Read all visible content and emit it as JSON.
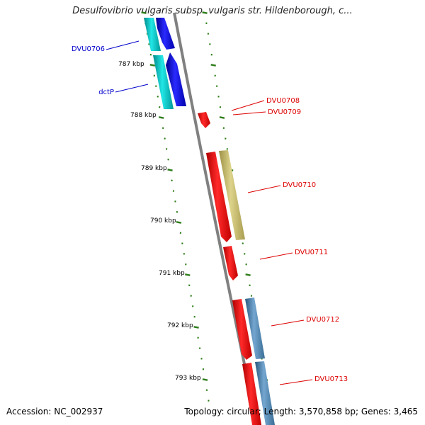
{
  "header": {
    "title": "Desulfovibrio vulgaris subsp. vulgaris str. Hildenborough, c..."
  },
  "footer": {
    "accession": "Accession: NC_002937",
    "stats": "Topology: circular; Length: 3,570,858 bp; Genes: 3,465"
  },
  "colors": {
    "backbone": "#808080",
    "tick": "#2e7d1a",
    "cds_cyan": "#00cccc",
    "cds_blue": "#0000ee",
    "cds_red": "#ee0000",
    "cds_khaki": "#c8bd6a",
    "cds_steel": "#4682b4",
    "label_blue": "#0000cc",
    "label_red": "#dd0000"
  },
  "scale_labels": [
    {
      "text": "787 kbp"
    },
    {
      "text": "788 kbp"
    },
    {
      "text": "789 kbp"
    },
    {
      "text": "790 kbp"
    },
    {
      "text": "791 kbp"
    },
    {
      "text": "792 kbp"
    },
    {
      "text": "793 kbp"
    }
  ],
  "gene_labels": [
    {
      "text": "DVU0706",
      "strand": "forward"
    },
    {
      "text": "dctP",
      "strand": "forward"
    },
    {
      "text": "DVU0708",
      "strand": "reverse"
    },
    {
      "text": "DVU0709",
      "strand": "reverse"
    },
    {
      "text": "DVU0710",
      "strand": "reverse"
    },
    {
      "text": "DVU0711",
      "strand": "reverse"
    },
    {
      "text": "DVU0712",
      "strand": "reverse"
    },
    {
      "text": "DVU0713",
      "strand": "reverse"
    }
  ]
}
